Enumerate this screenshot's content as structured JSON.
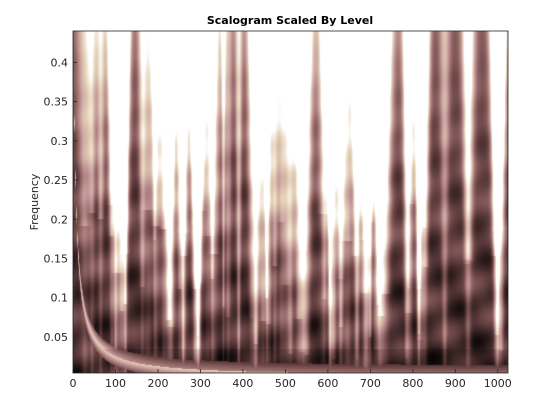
{
  "chart_data": {
    "type": "heatmap",
    "title": "Scalogram Scaled By Level",
    "xlabel": "",
    "ylabel": "Frequency",
    "xlim": [
      0,
      1024
    ],
    "ylim": [
      0.004,
      0.44
    ],
    "x_ticks": [
      0,
      100,
      200,
      300,
      400,
      500,
      600,
      700,
      800,
      900,
      1000
    ],
    "y_ticks": [
      0.05,
      0.1,
      0.15,
      0.2,
      0.25,
      0.3,
      0.35,
      0.4
    ],
    "grid": false,
    "colormap": [
      "#000000",
      "#3a2424",
      "#6e4848",
      "#a17373",
      "#c9a0a0",
      "#e3cfb4",
      "#ffffff"
    ],
    "cone_of_influence_edge_color": "#fff6e6",
    "noise_band_color": "#1a1010"
  }
}
